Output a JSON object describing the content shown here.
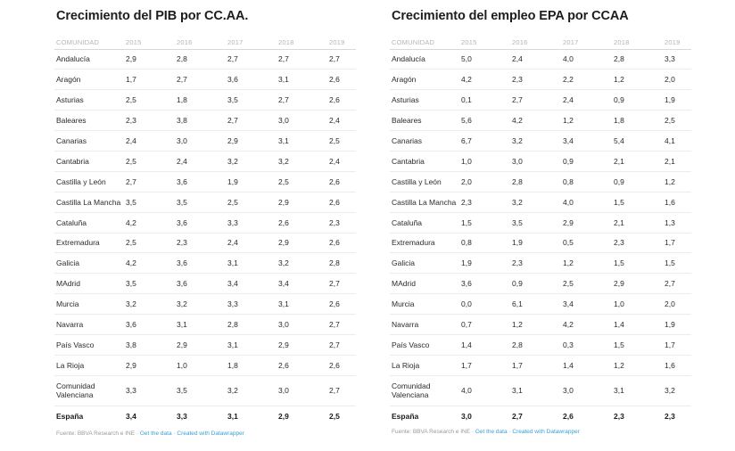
{
  "left": {
    "title": "Crecimiento del PIB por CC.AA.",
    "columns": [
      "COMUNIDAD",
      "2015",
      "2016",
      "2017",
      "2018",
      "2019"
    ],
    "rows": [
      {
        "name": "Andalucía",
        "values": [
          "2,9",
          "2,8",
          "2,7",
          "2,7",
          "2,7"
        ]
      },
      {
        "name": "Aragón",
        "values": [
          "1,7",
          "2,7",
          "3,6",
          "3,1",
          "2,6"
        ]
      },
      {
        "name": "Asturias",
        "values": [
          "2,5",
          "1,8",
          "3,5",
          "2,7",
          "2,6"
        ]
      },
      {
        "name": "Baleares",
        "values": [
          "2,3",
          "3,8",
          "2,7",
          "3,0",
          "2,4"
        ]
      },
      {
        "name": "Canarias",
        "values": [
          "2,4",
          "3,0",
          "2,9",
          "3,1",
          "2,5"
        ]
      },
      {
        "name": "Cantabria",
        "values": [
          "2,5",
          "2,4",
          "3,2",
          "3,2",
          "2,4"
        ]
      },
      {
        "name": "Castilla y León",
        "values": [
          "2,7",
          "3,6",
          "1,9",
          "2,5",
          "2,6"
        ]
      },
      {
        "name": "Castilla La Mancha",
        "values": [
          "3,5",
          "3,5",
          "2,5",
          "2,9",
          "2,6"
        ]
      },
      {
        "name": "Cataluña",
        "values": [
          "4,2",
          "3,6",
          "3,3",
          "2,6",
          "2,3"
        ]
      },
      {
        "name": "Extremadura",
        "values": [
          "2,5",
          "2,3",
          "2,4",
          "2,9",
          "2,6"
        ]
      },
      {
        "name": "Galicia",
        "values": [
          "4,2",
          "3,6",
          "3,1",
          "3,2",
          "2,8"
        ]
      },
      {
        "name": "MAdrid",
        "values": [
          "3,5",
          "3,6",
          "3,4",
          "3,4",
          "2,7"
        ]
      },
      {
        "name": "Murcia",
        "values": [
          "3,2",
          "3,2",
          "3,3",
          "3,1",
          "2,6"
        ]
      },
      {
        "name": "Navarra",
        "values": [
          "3,6",
          "3,1",
          "2,8",
          "3,0",
          "2,7"
        ]
      },
      {
        "name": "País Vasco",
        "values": [
          "3,8",
          "2,9",
          "3,1",
          "2,9",
          "2,7"
        ]
      },
      {
        "name": "La Rioja",
        "values": [
          "2,9",
          "1,0",
          "1,8",
          "2,6",
          "2,6"
        ]
      },
      {
        "name": "Comunidad Valenciana",
        "values": [
          "3,3",
          "3,5",
          "3,2",
          "3,0",
          "2,7"
        ]
      }
    ],
    "total": {
      "name": "España",
      "values": [
        "3,4",
        "3,3",
        "3,1",
        "2,9",
        "2,5"
      ]
    },
    "footer": {
      "source": "Fuente: BBVA Research e INE · ",
      "get_data": "Get the data",
      "sep": " · ",
      "created": "Created with Datawrapper"
    }
  },
  "right": {
    "title": "Crecimiento del empleo EPA por CCAA",
    "columns": [
      "COMUNIDAD",
      "2015",
      "2016",
      "2017",
      "2018",
      "2019"
    ],
    "rows": [
      {
        "name": "Andalucía",
        "values": [
          "5,0",
          "2,4",
          "4,0",
          "2,8",
          "3,3"
        ]
      },
      {
        "name": "Aragón",
        "values": [
          "4,2",
          "2,3",
          "2,2",
          "1,2",
          "2,0"
        ]
      },
      {
        "name": "Asturias",
        "values": [
          "0,1",
          "2,7",
          "2,4",
          "0,9",
          "1,9"
        ]
      },
      {
        "name": "Baleares",
        "values": [
          "5,6",
          "4,2",
          "1,2",
          "1,8",
          "2,5"
        ]
      },
      {
        "name": "Canarias",
        "values": [
          "6,7",
          "3,2",
          "3,4",
          "5,4",
          "4,1"
        ]
      },
      {
        "name": "Cantabria",
        "values": [
          "1,0",
          "3,0",
          "0,9",
          "2,1",
          "2,1"
        ]
      },
      {
        "name": "Castilla y León",
        "values": [
          "2,0",
          "2,8",
          "0,8",
          "0,9",
          "1,2"
        ]
      },
      {
        "name": "Castilla La Mancha",
        "values": [
          "2,3",
          "3,2",
          "4,0",
          "1,5",
          "1,6"
        ]
      },
      {
        "name": "Cataluña",
        "values": [
          "1,5",
          "3,5",
          "2,9",
          "2,1",
          "1,3"
        ]
      },
      {
        "name": "Extremadura",
        "values": [
          "0,8",
          "1,9",
          "0,5",
          "2,3",
          "1,7"
        ]
      },
      {
        "name": "Galicia",
        "values": [
          "1,9",
          "2,3",
          "1,2",
          "1,5",
          "1,5"
        ]
      },
      {
        "name": "MAdrid",
        "values": [
          "3,6",
          "0,9",
          "2,5",
          "2,9",
          "2,7"
        ]
      },
      {
        "name": "Murcia",
        "values": [
          "0,0",
          "6,1",
          "3,4",
          "1,0",
          "2,0"
        ]
      },
      {
        "name": "Navarra",
        "values": [
          "0,7",
          "1,2",
          "4,2",
          "1,4",
          "1,9"
        ]
      },
      {
        "name": "País Vasco",
        "values": [
          "1,4",
          "2,8",
          "0,3",
          "1,5",
          "1,7"
        ]
      },
      {
        "name": "La Rioja",
        "values": [
          "1,7",
          "1,7",
          "1,4",
          "1,2",
          "1,6"
        ]
      },
      {
        "name": "Comunidad Valenciana",
        "values": [
          "4,0",
          "3,1",
          "3,0",
          "3,1",
          "3,2"
        ]
      }
    ],
    "total": {
      "name": "España",
      "values": [
        "3,0",
        "2,7",
        "2,6",
        "2,3",
        "2,3"
      ]
    },
    "footer": {
      "source": "Fuente: BBVA Research e INE · ",
      "get_data": "Get the data",
      "sep": " · ",
      "created": "Created with Datawrapper"
    }
  }
}
